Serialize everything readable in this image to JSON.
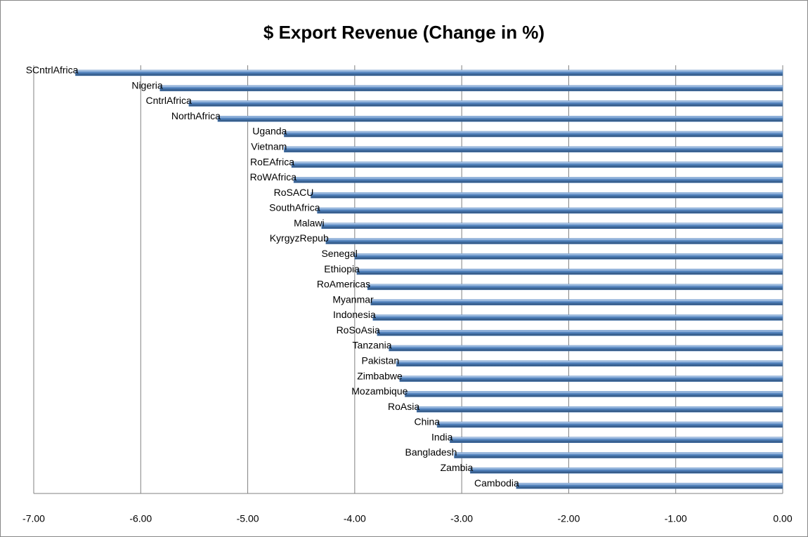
{
  "chart_data": {
    "type": "barh",
    "title": "$ Export Revenue (Change in %)",
    "categories": [
      "SCntrlAfrica",
      "Nigeria",
      "CntrlAfrica",
      "NorthAfrica",
      "Uganda",
      "Vietnam",
      "RoEAfrica",
      "RoWAfrica",
      "RoSACU",
      "SouthAfrica",
      "Malawi",
      "KyrgyzRepub",
      "Senegal",
      "Ethiopia",
      "RoAmericas",
      "Myanmar",
      "Indonesia",
      "RoSoAsia",
      "Tanzania",
      "Pakistan",
      "Zimbabwe",
      "Mozambique",
      "RoAsia",
      "China",
      "India",
      "Bangladesh",
      "Zambia",
      "Cambodia"
    ],
    "values": [
      -6.61,
      -5.82,
      -5.55,
      -5.28,
      -4.66,
      -4.66,
      -4.59,
      -4.57,
      -4.41,
      -4.35,
      -4.31,
      -4.27,
      -4.0,
      -3.98,
      -3.88,
      -3.85,
      -3.83,
      -3.79,
      -3.68,
      -3.61,
      -3.58,
      -3.53,
      -3.42,
      -3.23,
      -3.11,
      -3.07,
      -2.92,
      -2.49
    ],
    "color": "#4f81bd",
    "xlim": [
      -7,
      0
    ],
    "xticks": [
      {
        "value": -7,
        "label": "-7.00"
      },
      {
        "value": -6,
        "label": "-6.00"
      },
      {
        "value": -5,
        "label": "-5.00"
      },
      {
        "value": -4,
        "label": "-4.00"
      },
      {
        "value": -3,
        "label": "-3.00"
      },
      {
        "value": -2,
        "label": "-2.00"
      },
      {
        "value": -1,
        "label": "-1.00"
      },
      {
        "value": 0,
        "label": "0.00"
      }
    ],
    "grid": true
  }
}
